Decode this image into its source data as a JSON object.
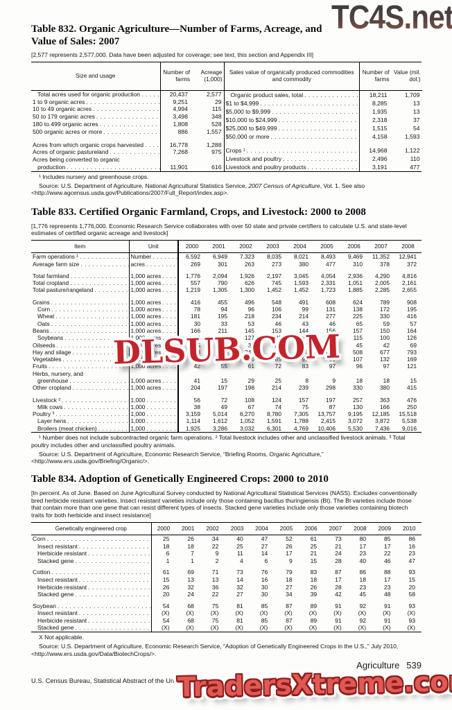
{
  "watermarks": {
    "top": "TC4S.net",
    "middle": "DLSUB.COM",
    "bottom": "TradersXtreme.com"
  },
  "footer": {
    "left": "U.S. Census Bureau, Statistical Abstract of the United States: 2012",
    "section": "Agriculture",
    "number": "539"
  },
  "table832": {
    "title_line1": "Table 832. Organic Agriculture—Number of Farms, Acreage, and",
    "title_line2": "Value of Sales: 2007",
    "note": "[2,577 represents 2,577,000. Data have been adjusted for coverage; see text, this section and Appendix III]",
    "left": {
      "headers": {
        "col1": "Size and usage",
        "col2": "Number of farms",
        "col3": "Acreage (1,000)"
      },
      "rows": [
        {
          "label": "Total acres used for organic production",
          "indent": true,
          "v": [
            "20,437",
            "2,577"
          ]
        },
        {
          "label": "1 to 9 organic acres",
          "v": [
            "9,251",
            "29"
          ]
        },
        {
          "label": "10 to 49 organic acres",
          "v": [
            "4,994",
            "115"
          ]
        },
        {
          "label": "50 to 179 organic acres",
          "v": [
            "3,498",
            "348"
          ]
        },
        {
          "label": "180 to 499 organic acres",
          "v": [
            "1,808",
            "528"
          ]
        },
        {
          "label": "500 organic acres or more",
          "v": [
            "886",
            "1,557"
          ]
        },
        {
          "spacer": true
        },
        {
          "label": "Acres from which organic crops harvested",
          "v": [
            "16,778",
            "1,288"
          ]
        },
        {
          "label": "Acres of organic pastureland",
          "v": [
            "7,268",
            "975"
          ]
        },
        {
          "label": "Acres being converted to organic",
          "noleader": true,
          "v": [
            "",
            ""
          ]
        },
        {
          "label": "production",
          "indent": true,
          "v": [
            "11,901",
            "616"
          ]
        }
      ]
    },
    "right": {
      "headers": {
        "col1": "Sales value of organically produced commodities and commodity",
        "col2": "Number of farms",
        "col3": "Value (mil. dol.)"
      },
      "rows": [
        {
          "label": "Organic product sales, total",
          "indent": true,
          "v": [
            "18,211",
            "1,709"
          ]
        },
        {
          "label": "$1 to $4,999",
          "v": [
            "8,285",
            "13"
          ]
        },
        {
          "label": "$5,000 to $9,999",
          "v": [
            "1,935",
            "13"
          ]
        },
        {
          "label": "$10,000 to $24,999",
          "v": [
            "2,318",
            "37"
          ]
        },
        {
          "label": "$25,000 to $49,999",
          "v": [
            "1,515",
            "54"
          ]
        },
        {
          "label": "$50,000 or more",
          "v": [
            "4,158",
            "1,593"
          ]
        },
        {
          "spacer": true
        },
        {
          "label": "Crops ¹",
          "v": [
            "14,968",
            "1,122"
          ]
        },
        {
          "label": "Livestock and poultry",
          "v": [
            "2,496",
            "110"
          ]
        },
        {
          "label": "",
          "noleader": true,
          "v": [
            "",
            ""
          ]
        },
        {
          "label": "Livestock and poultry products",
          "v": [
            "3,191",
            "477"
          ]
        }
      ]
    },
    "footnote": "¹ Includes nursery and greenhouse crops.",
    "source_prefix": "Source: U.S. Department of Agriculture, National Agricultural Statistics Service, ",
    "source_italic": "2007 Census of Agriculture",
    "source_suffix": ", Vol. 1. See also <http://www.agcensus.usda.gov/Publications/2007/Full_Report/index.asp>."
  },
  "table833": {
    "title": "Table 833. Certified Organic Farmland, Crops, and Livestock: 2000 to 2008",
    "note": "[1,776 represents 1,776,000. Economic Research Service collaborates with over 50 state and private certifiers to calculate U.S. and state-level estimates of certified organic acreage and livestock]",
    "headers": {
      "item": "Item",
      "unit": "Unit"
    },
    "years": [
      "2000",
      "2001",
      "2002",
      "2003",
      "2004",
      "2005",
      "2006",
      "2007",
      "2008"
    ],
    "rows": [
      {
        "label": "Farm operations ¹",
        "unit": "Number",
        "v": [
          "6,592",
          "6,949",
          "7,323",
          "8,035",
          "8,021",
          "8,493",
          "9,469",
          "11,352",
          "12,941"
        ]
      },
      {
        "label": "Average farm size",
        "unit": "acres",
        "v": [
          "269",
          "301",
          "263",
          "273",
          "380",
          "477",
          "310",
          "378",
          "372"
        ]
      },
      {
        "spacer": true
      },
      {
        "label": "Total farmland",
        "unit": "1,000 acres",
        "v": [
          "1,776",
          "2,094",
          "1,926",
          "2,197",
          "3,045",
          "4,054",
          "2,936",
          "4,290",
          "4,816"
        ]
      },
      {
        "label": "Total cropland",
        "unit": "1,000 acres",
        "v": [
          "557",
          "790",
          "626",
          "745",
          "1,593",
          "2,331",
          "1,051",
          "2,005",
          "2,161"
        ]
      },
      {
        "label": "Total pasture/rangeland",
        "unit": "1,000 acres",
        "v": [
          "1,219",
          "1,305",
          "1,300",
          "1,452",
          "1,452",
          "1,723",
          "1,885",
          "2,285",
          "2,655"
        ]
      },
      {
        "spacer": true
      },
      {
        "label": "Grains",
        "unit": "1,000 acres",
        "v": [
          "416",
          "455",
          "496",
          "548",
          "491",
          "608",
          "624",
          "789",
          "908"
        ]
      },
      {
        "label": "Corn",
        "indent": true,
        "unit": "1,000 acres",
        "v": [
          "78",
          "94",
          "96",
          "106",
          "99",
          "131",
          "138",
          "172",
          "195"
        ]
      },
      {
        "label": "Wheat",
        "indent": true,
        "unit": "1,000 acres",
        "v": [
          "181",
          "195",
          "218",
          "234",
          "214",
          "277",
          "225",
          "330",
          "416"
        ]
      },
      {
        "label": "Oats",
        "indent": true,
        "unit": "1,000 acres",
        "v": [
          "30",
          "33",
          "53",
          "46",
          "43",
          "46",
          "65",
          "59",
          "57"
        ]
      },
      {
        "label": "Beans",
        "unit": "1,000 acres",
        "v": [
          "166",
          "211",
          "145",
          "153",
          "144",
          "156",
          "157",
          "150",
          "164"
        ]
      },
      {
        "label": "Soybeans",
        "indent": true,
        "unit": "1,000 acres",
        "v": [
          "136",
          "174",
          "127",
          "122",
          "114",
          "122",
          "115",
          "100",
          "126"
        ]
      },
      {
        "label": "Oilseeds",
        "unit": "1,000 acres",
        "v": [
          "55",
          "44",
          "32",
          "38",
          "51",
          "46",
          "45",
          "42",
          "69"
        ]
      },
      {
        "label": "Hay and silage",
        "unit": "1,000 acres",
        "v": [
          "253",
          "256",
          "241",
          "262",
          "317",
          "411",
          "508",
          "677",
          "793"
        ]
      },
      {
        "label": "Vegetables",
        "unit": "1,000 acres",
        "v": [
          "62",
          "71",
          "76",
          "85",
          "93",
          "99",
          "107",
          "132",
          "169"
        ]
      },
      {
        "label": "Fruits",
        "unit": "1,000 acres",
        "v": [
          "42",
          "55",
          "61",
          "72",
          "83",
          "97",
          "96",
          "97",
          "121"
        ]
      },
      {
        "label": "Herbs, nursery, and",
        "noleader": true
      },
      {
        "label": "greenhouse",
        "indent": true,
        "unit": "1,000 acres",
        "v": [
          "41",
          "15",
          "29",
          "25",
          "8",
          "9",
          "18",
          "18",
          "15"
        ]
      },
      {
        "label": "Other cropland",
        "unit": "1,000 acres",
        "v": [
          "204",
          "197",
          "198",
          "214",
          "239",
          "298",
          "330",
          "380",
          "415"
        ]
      },
      {
        "spacer": true
      },
      {
        "label": "Livestock ²",
        "unit": "1,000",
        "v": [
          "56",
          "72",
          "108",
          "124",
          "157",
          "197",
          "257",
          "363",
          "476"
        ]
      },
      {
        "label": "Milk cows",
        "indent": true,
        "unit": "1,000",
        "v": [
          "38",
          "49",
          "67",
          "74",
          "75",
          "87",
          "130",
          "166",
          "250"
        ]
      },
      {
        "label": "Poultry ³",
        "unit": "1,000",
        "v": [
          "3,159",
          "5,014",
          "6,270",
          "8,780",
          "7,305",
          "13,757",
          "9,195",
          "12,185",
          "15,518"
        ]
      },
      {
        "label": "Layer hens",
        "indent": true,
        "unit": "1,000",
        "v": [
          "1,114",
          "1,612",
          "1,052",
          "1,591",
          "1,788",
          "2,415",
          "3,072",
          "3,872",
          "5,538"
        ]
      },
      {
        "label": "Broilers (meat chicken)",
        "indent": true,
        "unit": "1,000",
        "v": [
          "1,925",
          "3,286",
          "3,032",
          "6,301",
          "4,769",
          "10,406",
          "5,530",
          "7,436",
          "9,016"
        ]
      }
    ],
    "footnote": "¹ Number does not include subcontracted organic farm operations. ² Total livestock includes other and unclassified livestock animals. ³ Total poultry includes other and unclassified poultry animals.",
    "source": "Source: U.S. Department of Agriculture, Economic Research Service, “Briefing Rooms, Organic Agriculture,” <http://www.ers.usda.gov/Briefing/Organic/>."
  },
  "table834": {
    "title": "Table 834. Adoption of Genetically Engineered Crops: 2000 to 2010",
    "note": "[In percent. As of June. Based on June Agricultural Survey conducted by National Agricultural Statistical Services (NASS). Excludes conventionally bred herbicide resistant varieties. Insect resistant varieties include only those containing bacillus thuringiensis (Bt). The Bt varieties include those that contain more than one gene that can resist different types of insects. Stacked gene varieties include only those varieties containing biotech traits for both herbicide and insect resistance]",
    "header_label": "Genetically engineered crop",
    "years": [
      "2000",
      "2001",
      "2002",
      "2003",
      "2004",
      "2005",
      "2006",
      "2007",
      "2008",
      "2009",
      "2010"
    ],
    "rows": [
      {
        "label": "Corn",
        "v": [
          "25",
          "26",
          "34",
          "40",
          "47",
          "52",
          "61",
          "73",
          "80",
          "85",
          "86"
        ]
      },
      {
        "label": "Insect resistant",
        "indent": true,
        "v": [
          "18",
          "18",
          "22",
          "25",
          "27",
          "26",
          "25",
          "21",
          "17",
          "17",
          "16"
        ]
      },
      {
        "label": "Herbicide resistant",
        "indent": true,
        "v": [
          "6",
          "7",
          "9",
          "11",
          "14",
          "17",
          "21",
          "24",
          "23",
          "22",
          "23"
        ]
      },
      {
        "label": "Stacked gene",
        "indent": true,
        "v": [
          "1",
          "1",
          "2",
          "4",
          "6",
          "9",
          "15",
          "28",
          "40",
          "46",
          "47"
        ]
      },
      {
        "spacer": true
      },
      {
        "label": "Cotton",
        "v": [
          "61",
          "69",
          "71",
          "73",
          "76",
          "79",
          "83",
          "87",
          "86",
          "88",
          "93"
        ]
      },
      {
        "label": "Insect resistant",
        "indent": true,
        "v": [
          "15",
          "13",
          "13",
          "14",
          "16",
          "18",
          "18",
          "17",
          "18",
          "17",
          "15"
        ]
      },
      {
        "label": "Herbicide resistant",
        "indent": true,
        "v": [
          "26",
          "32",
          "36",
          "32",
          "30",
          "27",
          "26",
          "28",
          "23",
          "23",
          "20"
        ]
      },
      {
        "label": "Stacked gene",
        "indent": true,
        "v": [
          "20",
          "24",
          "22",
          "27",
          "30",
          "34",
          "39",
          "42",
          "45",
          "48",
          "58"
        ]
      },
      {
        "spacer": true
      },
      {
        "label": "Soybean",
        "v": [
          "54",
          "68",
          "75",
          "81",
          "85",
          "87",
          "89",
          "91",
          "92",
          "91",
          "93"
        ]
      },
      {
        "label": "Insect resistant",
        "indent": true,
        "v": [
          "(X)",
          "(X)",
          "(X)",
          "(X)",
          "(X)",
          "(X)",
          "(X)",
          "(X)",
          "(X)",
          "(X)",
          "(X)"
        ]
      },
      {
        "label": "Herbicide resistant",
        "indent": true,
        "v": [
          "54",
          "68",
          "75",
          "81",
          "85",
          "87",
          "89",
          "91",
          "92",
          "91",
          "93"
        ]
      },
      {
        "label": "Stacked gene",
        "indent": true,
        "v": [
          "(X)",
          "(X)",
          "(X)",
          "(X)",
          "(X)",
          "(X)",
          "(X)",
          "(X)",
          "(X)",
          "(X)",
          "(X)"
        ]
      }
    ],
    "footnote": "X Not applicable.",
    "source": "Source: U.S. Department of Agriculture, Economic Research Service, “Adoption of Genetically Engineered Crops in the U.S.,” July 2010, <http://www.ers.usda.gov/Data/BiotechCrops/>."
  }
}
